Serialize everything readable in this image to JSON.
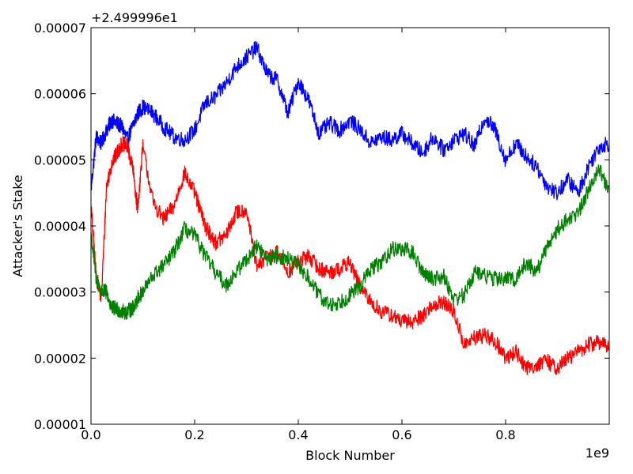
{
  "chart_data": {
    "type": "line",
    "title": "",
    "xlabel": "Block Number",
    "ylabel": "Attacker's Stake",
    "x_scale_label": "1e9",
    "y_offset_label": "+2.499996e1",
    "xlim": [
      0.0,
      1.0
    ],
    "ylim": [
      1e-05,
      7e-05
    ],
    "x_tick_labels": [
      "0.0",
      "0.2",
      "0.4",
      "0.6",
      "0.8"
    ],
    "y_tick_labels": [
      "0.00001",
      "0.00002",
      "0.00003",
      "0.00004",
      "0.00005",
      "0.00006",
      "0.00007"
    ],
    "grid": false,
    "x": [
      0.0,
      0.01,
      0.02,
      0.03,
      0.04,
      0.05,
      0.06,
      0.07,
      0.08,
      0.09,
      0.1,
      0.12,
      0.14,
      0.16,
      0.18,
      0.2,
      0.22,
      0.24,
      0.26,
      0.28,
      0.3,
      0.32,
      0.34,
      0.36,
      0.38,
      0.4,
      0.42,
      0.44,
      0.46,
      0.48,
      0.5,
      0.52,
      0.54,
      0.56,
      0.58,
      0.6,
      0.62,
      0.64,
      0.66,
      0.68,
      0.7,
      0.72,
      0.74,
      0.76,
      0.78,
      0.8,
      0.82,
      0.84,
      0.86,
      0.88,
      0.9,
      0.92,
      0.94,
      0.96,
      0.98,
      1.0
    ],
    "series": [
      {
        "name": "blue",
        "color": "#0000ff",
        "values": [
          4.55e-05,
          5.35e-05,
          5.25e-05,
          5.45e-05,
          5.6e-05,
          5.55e-05,
          5.5e-05,
          5.3e-05,
          5.5e-05,
          5.7e-05,
          5.8e-05,
          5.7e-05,
          5.5e-05,
          5.35e-05,
          5.3e-05,
          5.45e-05,
          5.85e-05,
          5.95e-05,
          6.15e-05,
          6.4e-05,
          6.55e-05,
          6.7e-05,
          6.3e-05,
          6.2e-05,
          5.7e-05,
          6.2e-05,
          5.9e-05,
          5.4e-05,
          5.55e-05,
          5.45e-05,
          5.6e-05,
          5.45e-05,
          5.25e-05,
          5.35e-05,
          5.3e-05,
          5.4e-05,
          5.25e-05,
          5.1e-05,
          5.35e-05,
          5.15e-05,
          5.3e-05,
          5.4e-05,
          5.2e-05,
          5.65e-05,
          5.45e-05,
          5e-05,
          5.25e-05,
          5.05e-05,
          4.9e-05,
          4.6e-05,
          4.5e-05,
          4.7e-05,
          4.5e-05,
          4.9e-05,
          5.2e-05,
          5.25e-05
        ]
      },
      {
        "name": "red",
        "color": "#ff0000",
        "values": [
          4.3e-05,
          3.25e-05,
          2.9e-05,
          4.6e-05,
          4.95e-05,
          5.1e-05,
          5.25e-05,
          5.2e-05,
          4.9e-05,
          4.25e-05,
          5.2e-05,
          4.35e-05,
          4.1e-05,
          4.3e-05,
          4.8e-05,
          4.5e-05,
          4e-05,
          3.75e-05,
          3.85e-05,
          4.2e-05,
          4.25e-05,
          3.35e-05,
          3.55e-05,
          3.6e-05,
          3.3e-05,
          3.45e-05,
          3.55e-05,
          3.35e-05,
          3.3e-05,
          3.35e-05,
          3.45e-05,
          3.05e-05,
          2.85e-05,
          2.7e-05,
          2.65e-05,
          2.55e-05,
          2.55e-05,
          2.65e-05,
          2.8e-05,
          2.85e-05,
          2.7e-05,
          2.2e-05,
          2.3e-05,
          2.35e-05,
          2.25e-05,
          2e-05,
          2.1e-05,
          1.85e-05,
          1.9e-05,
          1.95e-05,
          1.85e-05,
          2e-05,
          2.1e-05,
          2.2e-05,
          2.25e-05,
          2.15e-05
        ]
      },
      {
        "name": "green",
        "color": "#008000",
        "values": [
          3.9e-05,
          3.2e-05,
          3e-05,
          3e-05,
          2.75e-05,
          2.75e-05,
          2.7e-05,
          2.7e-05,
          2.75e-05,
          2.9e-05,
          3e-05,
          3.25e-05,
          3.4e-05,
          3.6e-05,
          3.95e-05,
          3.85e-05,
          3.55e-05,
          3.3e-05,
          3.1e-05,
          3.3e-05,
          3.5e-05,
          3.7e-05,
          3.5e-05,
          3.55e-05,
          3.5e-05,
          3.4e-05,
          3.2e-05,
          2.95e-05,
          2.8e-05,
          2.85e-05,
          2.95e-05,
          3.1e-05,
          3.35e-05,
          3.45e-05,
          3.65e-05,
          3.65e-05,
          3.6e-05,
          3.3e-05,
          3.2e-05,
          3.25e-05,
          2.9e-05,
          2.95e-05,
          3.3e-05,
          3.25e-05,
          3.2e-05,
          3.2e-05,
          3.2e-05,
          3.45e-05,
          3.3e-05,
          3.7e-05,
          3.95e-05,
          4.1e-05,
          4.2e-05,
          4.55e-05,
          4.9e-05,
          4.5e-05
        ]
      }
    ]
  }
}
